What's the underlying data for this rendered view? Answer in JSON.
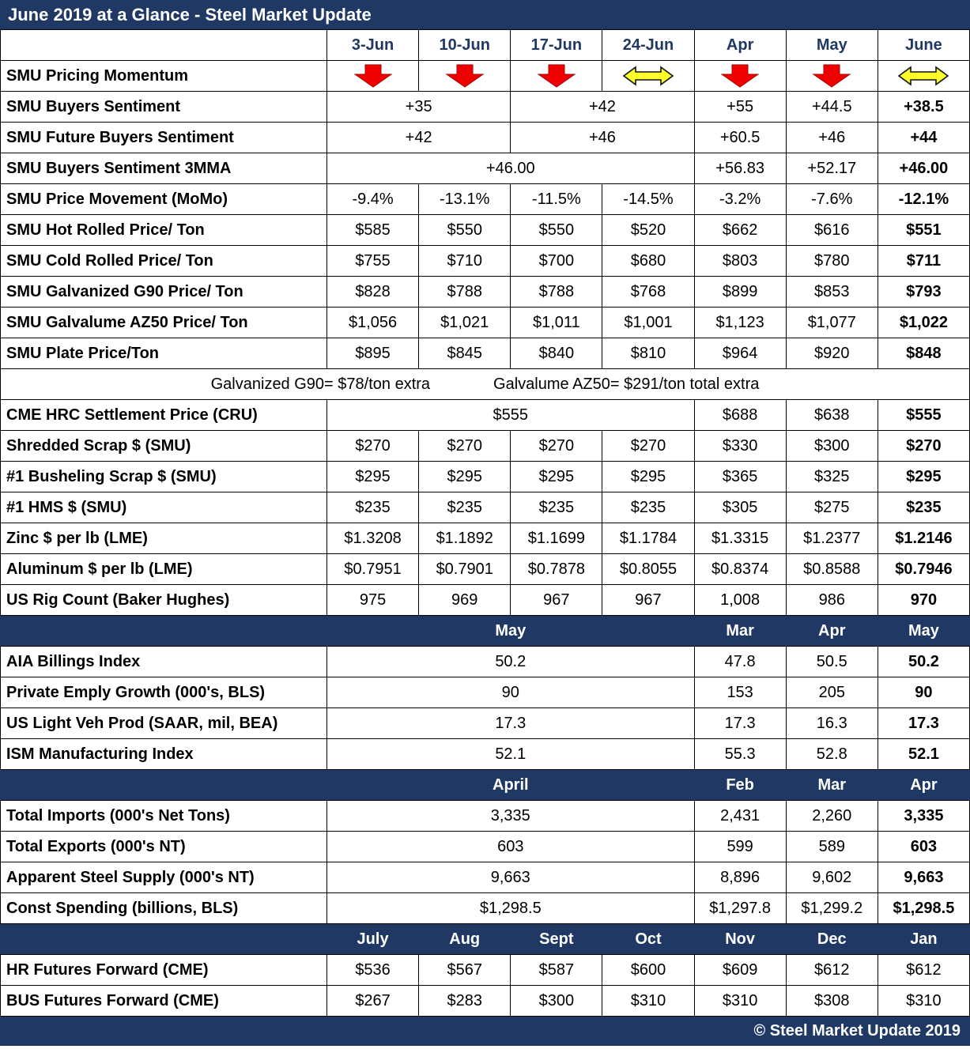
{
  "title": "June 2019 at a Glance - Steel Market Update",
  "footer": "© Steel Market Update 2019",
  "colors": {
    "navy": "#1f3864",
    "red": "#ee0000",
    "yellow": "#ffff2a",
    "header_text": "#1f3864"
  },
  "icons": {
    "momentum_down": "red-down-arrow",
    "momentum_sideways": "yellow-left-right-arrow"
  },
  "chart_data": {
    "type": "table",
    "title": "June 2019 at a Glance - Steel Market Update",
    "columns": [
      "3-Jun",
      "10-Jun",
      "17-Jun",
      "24-Jun",
      "Apr",
      "May",
      "June"
    ],
    "rows": [
      {
        "label": "SMU Pricing Momentum",
        "cells": [
          {
            "icon": "red-down-arrow"
          },
          {
            "icon": "red-down-arrow"
          },
          {
            "icon": "red-down-arrow"
          },
          {
            "icon": "yellow-left-right-arrow"
          },
          {
            "icon": "red-down-arrow"
          },
          {
            "icon": "red-down-arrow"
          },
          {
            "icon": "yellow-left-right-arrow"
          }
        ]
      },
      {
        "label": "SMU Buyers Sentiment",
        "cells": [
          {
            "t": "+35",
            "span": 2
          },
          {
            "t": "+42",
            "span": 2
          },
          {
            "t": "+55"
          },
          {
            "t": "+44.5"
          },
          {
            "t": "+38.5",
            "bold": true
          }
        ]
      },
      {
        "label": "SMU Future Buyers Sentiment",
        "cells": [
          {
            "t": "+42",
            "span": 2
          },
          {
            "t": "+46",
            "span": 2
          },
          {
            "t": "+60.5"
          },
          {
            "t": "+46"
          },
          {
            "t": "+44",
            "bold": true
          }
        ]
      },
      {
        "label": "SMU Buyers Sentiment 3MMA",
        "cells": [
          {
            "t": "+46.00",
            "span": 4
          },
          {
            "t": "+56.83"
          },
          {
            "t": "+52.17"
          },
          {
            "t": "+46.00",
            "bold": true
          }
        ]
      },
      {
        "label": "SMU Price Movement (MoMo)",
        "cells": [
          {
            "t": "-9.4%"
          },
          {
            "t": "-13.1%"
          },
          {
            "t": "-11.5%"
          },
          {
            "t": "-14.5%"
          },
          {
            "t": "-3.2%"
          },
          {
            "t": "-7.6%"
          },
          {
            "t": "-12.1%",
            "bold": true
          }
        ]
      },
      {
        "label": "SMU Hot Rolled Price/ Ton",
        "cells": [
          {
            "t": "$585"
          },
          {
            "t": "$550"
          },
          {
            "t": "$550"
          },
          {
            "t": "$520"
          },
          {
            "t": "$662"
          },
          {
            "t": "$616"
          },
          {
            "t": "$551",
            "bold": true
          }
        ]
      },
      {
        "label": "SMU Cold Rolled Price/ Ton",
        "cells": [
          {
            "t": "$755"
          },
          {
            "t": "$710"
          },
          {
            "t": "$700"
          },
          {
            "t": "$680"
          },
          {
            "t": "$803"
          },
          {
            "t": "$780"
          },
          {
            "t": "$711",
            "bold": true
          }
        ]
      },
      {
        "label": "SMU Galvanized G90 Price/ Ton",
        "cells": [
          {
            "t": "$828"
          },
          {
            "t": "$788"
          },
          {
            "t": "$788"
          },
          {
            "t": "$768"
          },
          {
            "t": "$899"
          },
          {
            "t": "$853"
          },
          {
            "t": "$793",
            "bold": true
          }
        ]
      },
      {
        "label": "SMU Galvalume AZ50 Price/ Ton",
        "cells": [
          {
            "t": "$1,056"
          },
          {
            "t": "$1,021"
          },
          {
            "t": "$1,011"
          },
          {
            "t": "$1,001"
          },
          {
            "t": "$1,123"
          },
          {
            "t": "$1,077"
          },
          {
            "t": "$1,022",
            "bold": true
          }
        ]
      },
      {
        "label": "SMU Plate Price/Ton",
        "cells": [
          {
            "t": "$895"
          },
          {
            "t": "$845"
          },
          {
            "t": "$840"
          },
          {
            "t": "$810"
          },
          {
            "t": "$964"
          },
          {
            "t": "$920"
          },
          {
            "t": "$848",
            "bold": true
          }
        ]
      },
      {
        "type": "note",
        "parts": [
          "Galvanized G90= $78/ton extra",
          "Galvalume AZ50= $291/ton total extra"
        ]
      },
      {
        "label": "CME HRC Settlement Price (CRU)",
        "cells": [
          {
            "t": "$555",
            "span": 4
          },
          {
            "t": "$688"
          },
          {
            "t": "$638"
          },
          {
            "t": "$555",
            "bold": true
          }
        ]
      },
      {
        "label": "Shredded Scrap $ (SMU)",
        "cells": [
          {
            "t": "$270"
          },
          {
            "t": "$270"
          },
          {
            "t": "$270"
          },
          {
            "t": "$270"
          },
          {
            "t": "$330"
          },
          {
            "t": "$300"
          },
          {
            "t": "$270",
            "bold": true
          }
        ]
      },
      {
        "label": "#1 Busheling Scrap $ (SMU)",
        "cells": [
          {
            "t": "$295"
          },
          {
            "t": "$295"
          },
          {
            "t": "$295"
          },
          {
            "t": "$295"
          },
          {
            "t": "$365"
          },
          {
            "t": "$325"
          },
          {
            "t": "$295",
            "bold": true
          }
        ]
      },
      {
        "label": "#1 HMS $ (SMU)",
        "cells": [
          {
            "t": "$235"
          },
          {
            "t": "$235"
          },
          {
            "t": "$235"
          },
          {
            "t": "$235"
          },
          {
            "t": "$305"
          },
          {
            "t": "$275"
          },
          {
            "t": "$235",
            "bold": true
          }
        ]
      },
      {
        "label": "Zinc $ per lb (LME)",
        "cells": [
          {
            "t": "$1.3208"
          },
          {
            "t": "$1.1892"
          },
          {
            "t": "$1.1699"
          },
          {
            "t": "$1.1784"
          },
          {
            "t": "$1.3315"
          },
          {
            "t": "$1.2377"
          },
          {
            "t": "$1.2146",
            "bold": true
          }
        ]
      },
      {
        "label": "Aluminum $ per lb (LME)",
        "cells": [
          {
            "t": "$0.7951"
          },
          {
            "t": "$0.7901"
          },
          {
            "t": "$0.7878"
          },
          {
            "t": "$0.8055"
          },
          {
            "t": "$0.8374"
          },
          {
            "t": "$0.8588"
          },
          {
            "t": "$0.7946",
            "bold": true
          }
        ]
      },
      {
        "label": "US Rig Count (Baker Hughes)",
        "cells": [
          {
            "t": "975"
          },
          {
            "t": "969"
          },
          {
            "t": "967"
          },
          {
            "t": "967"
          },
          {
            "t": "1,008"
          },
          {
            "t": "986"
          },
          {
            "t": "970",
            "bold": true
          }
        ]
      },
      {
        "type": "subheader",
        "label": "",
        "cells": [
          {
            "t": "May",
            "span": 4
          },
          {
            "t": "Mar"
          },
          {
            "t": "Apr"
          },
          {
            "t": "May"
          }
        ]
      },
      {
        "label": "AIA Billings Index",
        "cells": [
          {
            "t": "50.2",
            "span": 4
          },
          {
            "t": "47.8"
          },
          {
            "t": "50.5"
          },
          {
            "t": "50.2",
            "bold": true
          }
        ]
      },
      {
        "label": "Private Emply Growth (000's, BLS)",
        "cells": [
          {
            "t": "90",
            "span": 4
          },
          {
            "t": "153"
          },
          {
            "t": "205"
          },
          {
            "t": "90",
            "bold": true
          }
        ]
      },
      {
        "label": "US Light Veh Prod (SAAR, mil, BEA)",
        "cells": [
          {
            "t": "17.3",
            "span": 4
          },
          {
            "t": "17.3"
          },
          {
            "t": "16.3"
          },
          {
            "t": "17.3",
            "bold": true
          }
        ]
      },
      {
        "label": "ISM Manufacturing Index",
        "cells": [
          {
            "t": "52.1",
            "span": 4
          },
          {
            "t": "55.3"
          },
          {
            "t": "52.8"
          },
          {
            "t": "52.1",
            "bold": true
          }
        ]
      },
      {
        "type": "subheader",
        "label": "",
        "cells": [
          {
            "t": "April",
            "span": 4
          },
          {
            "t": "Feb"
          },
          {
            "t": "Mar"
          },
          {
            "t": "Apr"
          }
        ]
      },
      {
        "label": "Total Imports (000's Net Tons)",
        "cells": [
          {
            "t": "3,335",
            "span": 4
          },
          {
            "t": "2,431"
          },
          {
            "t": "2,260"
          },
          {
            "t": "3,335",
            "bold": true
          }
        ]
      },
      {
        "label": "Total Exports (000's NT)",
        "cells": [
          {
            "t": "603",
            "span": 4
          },
          {
            "t": "599"
          },
          {
            "t": "589"
          },
          {
            "t": "603",
            "bold": true
          }
        ]
      },
      {
        "label": "Apparent Steel Supply (000's NT)",
        "cells": [
          {
            "t": "9,663",
            "span": 4
          },
          {
            "t": "8,896"
          },
          {
            "t": "9,602"
          },
          {
            "t": "9,663",
            "bold": true
          }
        ]
      },
      {
        "label": "Const Spending (billions, BLS)",
        "cells": [
          {
            "t": "$1,298.5",
            "span": 4
          },
          {
            "t": "$1,297.8"
          },
          {
            "t": "$1,299.2"
          },
          {
            "t": "$1,298.5",
            "bold": true
          }
        ]
      },
      {
        "type": "subheader",
        "label": "",
        "cells": [
          {
            "t": "July"
          },
          {
            "t": "Aug"
          },
          {
            "t": "Sept"
          },
          {
            "t": "Oct"
          },
          {
            "t": "Nov"
          },
          {
            "t": "Dec"
          },
          {
            "t": "Jan"
          }
        ]
      },
      {
        "label": "HR Futures Forward (CME)",
        "cells": [
          {
            "t": "$536"
          },
          {
            "t": "$567"
          },
          {
            "t": "$587"
          },
          {
            "t": "$600"
          },
          {
            "t": "$609"
          },
          {
            "t": "$612"
          },
          {
            "t": "$612"
          }
        ]
      },
      {
        "label": "BUS Futures Forward (CME)",
        "cells": [
          {
            "t": "$267"
          },
          {
            "t": "$283"
          },
          {
            "t": "$300"
          },
          {
            "t": "$310"
          },
          {
            "t": "$310"
          },
          {
            "t": "$308"
          },
          {
            "t": "$310"
          }
        ]
      }
    ]
  }
}
